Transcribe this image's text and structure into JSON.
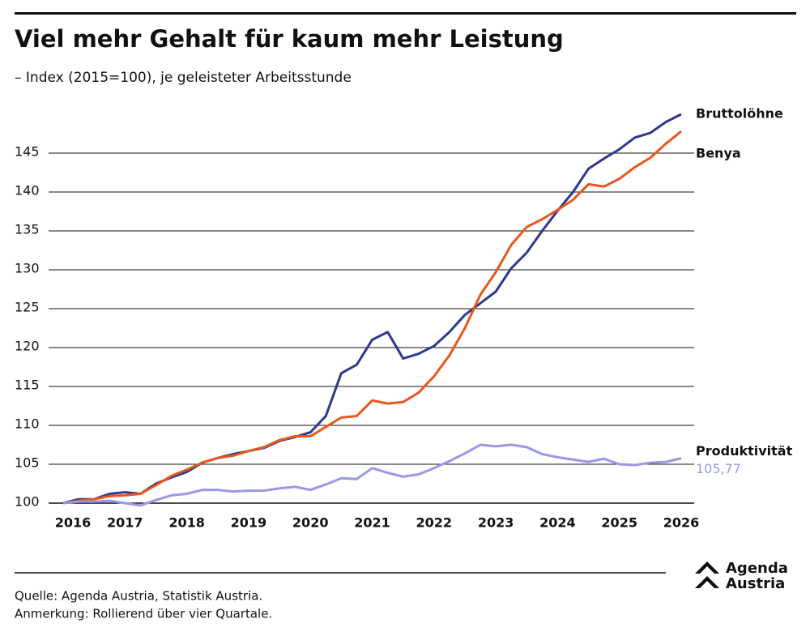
{
  "chart_data": {
    "type": "line",
    "title": "Viel mehr Gehalt für kaum mehr Leistung",
    "subtitle": "– Index (2015=100), je geleisteter Arbeitsstunde",
    "x": [
      2016,
      2016.25,
      2016.5,
      2016.75,
      2017,
      2017.25,
      2017.5,
      2017.75,
      2018,
      2018.25,
      2018.5,
      2018.75,
      2019,
      2019.25,
      2019.5,
      2019.75,
      2020,
      2020.25,
      2020.5,
      2020.75,
      2021,
      2021.25,
      2021.5,
      2021.75,
      2022,
      2022.25,
      2022.5,
      2022.75,
      2023,
      2023.25,
      2023.5,
      2023.75,
      2024,
      2024.25,
      2024.5,
      2024.75,
      2025,
      2025.25,
      2025.5,
      2025.75,
      2026
    ],
    "series": [
      {
        "name": "Bruttolöhne",
        "color": "#2b3a8c",
        "values": [
          100,
          100.5,
          100.5,
          101.2,
          101.4,
          101.2,
          102.5,
          103.3,
          104,
          105.2,
          105.8,
          106.3,
          106.7,
          107.1,
          108,
          108.5,
          109.1,
          111.2,
          116.7,
          117.8,
          121,
          122,
          118.6,
          119.2,
          120.2,
          122,
          124.2,
          125.7,
          127.2,
          130.2,
          132.2,
          135,
          137.6,
          140,
          143,
          144.3,
          145.5,
          147,
          147.6,
          149,
          150
        ]
      },
      {
        "name": "Benya",
        "color": "#e8571e",
        "values": [
          100,
          100.3,
          100.5,
          100.9,
          101,
          101.2,
          102.3,
          103.5,
          104.3,
          105.2,
          105.8,
          106.1,
          106.7,
          107.2,
          108.1,
          108.6,
          108.6,
          109.8,
          111,
          111.2,
          113.2,
          112.8,
          113,
          114.2,
          116.3,
          119,
          122.5,
          126.8,
          129.7,
          133.2,
          135.5,
          136.5,
          137.7,
          139,
          141,
          140.7,
          141.7,
          143.2,
          144.4,
          146.2,
          147.8
        ]
      },
      {
        "name": "Produktivität",
        "color": "#9b97e6",
        "values": [
          100,
          100.2,
          100.2,
          100.3,
          100,
          99.7,
          100.4,
          101,
          101.2,
          101.7,
          101.7,
          101.5,
          101.6,
          101.6,
          101.9,
          102.1,
          101.7,
          102.4,
          103.2,
          103.1,
          104.5,
          103.9,
          103.4,
          103.7,
          104.5,
          105.4,
          106.4,
          107.5,
          107.3,
          107.5,
          107.2,
          106.3,
          105.9,
          105.6,
          105.3,
          105.7,
          105,
          104.9,
          105.2,
          105.3,
          105.77
        ],
        "value_labels": [
          null,
          null,
          null,
          null,
          null,
          null,
          null,
          null,
          null,
          null,
          null,
          null,
          null,
          null,
          null,
          null,
          null,
          null,
          null,
          null,
          null,
          null,
          null,
          null,
          null,
          null,
          null,
          null,
          null,
          null,
          null,
          null,
          null,
          null,
          null,
          null,
          null,
          null,
          null,
          null,
          "105,77"
        ]
      }
    ],
    "xlim": [
      2016,
      2026
    ],
    "xticks": [
      2016,
      2017,
      2018,
      2019,
      2020,
      2021,
      2022,
      2023,
      2024,
      2025,
      2026
    ],
    "ylim": [
      100,
      150
    ],
    "yticks": [
      100,
      105,
      110,
      115,
      120,
      125,
      130,
      135,
      140,
      145
    ],
    "grid": true,
    "source": "Quelle: Agenda Austria, Statistik Austria.",
    "note": "Anmerkung: Rollierend über vier Quartale.",
    "logo": [
      "Agenda",
      "Austria"
    ]
  }
}
